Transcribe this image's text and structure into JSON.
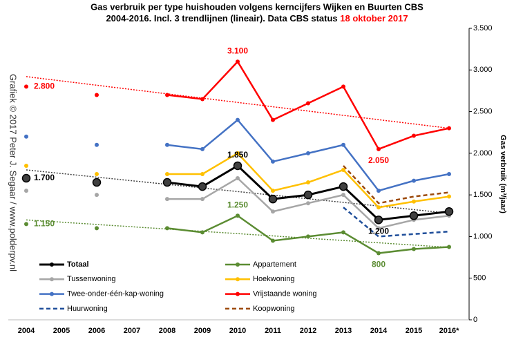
{
  "chart_data": {
    "type": "line",
    "title_line1": "Gas verbruik per type huishouden volgens kerncijfers Wijken en Buurten CBS",
    "title_line2": "2004-2016. Incl. 3 trendlijnen (lineair). Data CBS status ",
    "title_highlight": "18 oktober 2017",
    "watermark": "Grafiek © 2017 Peter J. Segaar / www.polderpv.nl",
    "y_axis_label": "Gas verbruik (m³/jaar)",
    "categories": [
      "2004",
      "2005",
      "2006",
      "2007",
      "2008",
      "2009",
      "2010",
      "2011",
      "2012",
      "2013",
      "2014",
      "2015",
      "2016*"
    ],
    "ylim": [
      0,
      3500
    ],
    "yticks": [
      0,
      500,
      {
        "value": 1000,
        "label": "1.000"
      },
      {
        "value": 1500,
        "label": "1.500"
      },
      {
        "value": 2000,
        "label": "2.000"
      },
      {
        "value": 2500,
        "label": "2.500"
      },
      {
        "value": 3000,
        "label": "3.000"
      },
      {
        "value": 3500,
        "label": "3.500"
      }
    ],
    "series": [
      {
        "name": "Totaal",
        "color": "#000000",
        "values": [
          1700,
          null,
          1650,
          null,
          1650,
          1600,
          1850,
          1450,
          1500,
          1600,
          1200,
          1250,
          1300
        ],
        "value_labels": [
          "1.700",
          null,
          null,
          null,
          null,
          null,
          "1.850",
          null,
          null,
          null,
          "1.200",
          null,
          null
        ]
      },
      {
        "name": "Appartement",
        "color": "#5b8c32",
        "values": [
          1150,
          null,
          1100,
          null,
          1100,
          1050,
          1250,
          950,
          1000,
          1050,
          800,
          850,
          875
        ],
        "value_labels": [
          "1.150",
          null,
          null,
          null,
          null,
          null,
          "1.250",
          null,
          null,
          null,
          "800",
          null,
          null
        ]
      },
      {
        "name": "Tussenwoning",
        "color": "#a6a6a6",
        "values": [
          1550,
          null,
          1500,
          null,
          1450,
          1450,
          1700,
          1300,
          1400,
          1500,
          1100,
          1200,
          1250
        ]
      },
      {
        "name": "Hoekwoning",
        "color": "#ffc000",
        "values": [
          1850,
          null,
          1750,
          null,
          1750,
          1750,
          2000,
          1550,
          1650,
          1800,
          1350,
          1420,
          1480
        ]
      },
      {
        "name": "Twee-onder-één-kap-woning",
        "color": "#4472c4",
        "values": [
          2200,
          null,
          2100,
          null,
          2100,
          2050,
          2400,
          1900,
          2000,
          2100,
          1550,
          1670,
          1750
        ]
      },
      {
        "name": "Vrijstaande woning",
        "color": "#ff0000",
        "values": [
          2800,
          null,
          2700,
          null,
          2700,
          2650,
          3100,
          2400,
          2600,
          2800,
          2050,
          2210,
          2300
        ],
        "value_labels": [
          "2.800",
          null,
          null,
          null,
          null,
          null,
          "3.100",
          null,
          null,
          null,
          "2.050",
          null,
          null
        ]
      },
      {
        "name": "Huurwoning",
        "color": "#1f4e9a",
        "dashed": true,
        "values": [
          null,
          null,
          null,
          null,
          null,
          null,
          null,
          null,
          null,
          1350,
          1000,
          1030,
          1060
        ]
      },
      {
        "name": "Koopwoning",
        "color": "#9c4a0c",
        "dashed": true,
        "values": [
          null,
          null,
          null,
          null,
          null,
          null,
          null,
          null,
          null,
          1850,
          1400,
          1480,
          1530
        ]
      }
    ],
    "trendlines": [
      {
        "color": "#ff0000",
        "values": [
          2920,
          2300
        ]
      },
      {
        "color": "#404040",
        "values": [
          1800,
          1280
        ]
      },
      {
        "color": "#5b8c32",
        "values": [
          1200,
          870
        ]
      }
    ]
  }
}
